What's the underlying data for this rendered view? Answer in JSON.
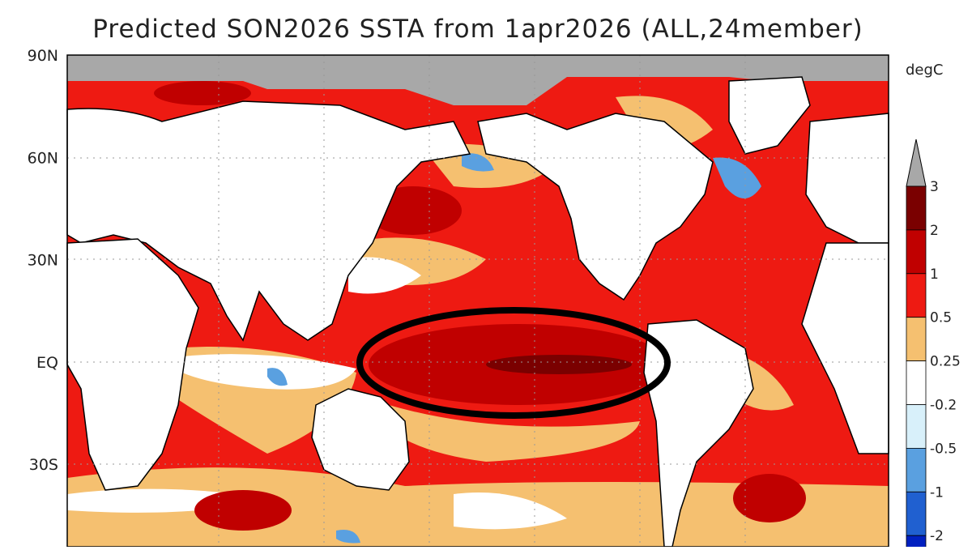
{
  "title": "Predicted SON2026 SSTA from 1apr2026 (ALL,24member)",
  "latitude_labels": [
    "90N",
    "60N",
    "30N",
    "EQ",
    "30S"
  ],
  "colorbar": {
    "unit": "degC",
    "labels": [
      "3",
      "2",
      "1",
      "0.5",
      "0.25",
      "-0.2",
      "-0.5",
      "-1",
      "-2"
    ]
  }
}
